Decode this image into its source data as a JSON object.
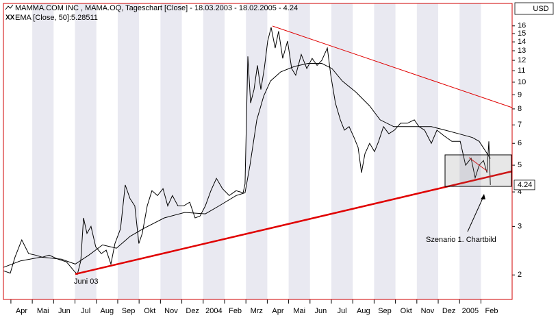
{
  "chart_data": {
    "type": "line",
    "title": "MAMMA.COM INC , MAMA.OQ, Tageschart [Close] - 18.03.2003 - 18.02.2005 - 4.24",
    "subtitle": "EMA [Close, 50]:5.28511",
    "currency": "USD",
    "last_price": 4.24,
    "annotations": [
      "Juni 03",
      "Szenario 1. Chartbild"
    ],
    "log_scale": true,
    "xlim": [
      -0.35,
      23.46
    ],
    "ylim": [
      1.63,
      19.3
    ],
    "xticks": [
      {
        "value": 0,
        "label": "Apr"
      },
      {
        "value": 1,
        "label": "Mai"
      },
      {
        "value": 2,
        "label": "Jun"
      },
      {
        "value": 3,
        "label": "Jul"
      },
      {
        "value": 4,
        "label": "Aug"
      },
      {
        "value": 5,
        "label": "Sep"
      },
      {
        "value": 6,
        "label": "Okt"
      },
      {
        "value": 7,
        "label": "Nov"
      },
      {
        "value": 8,
        "label": "Dez"
      },
      {
        "value": 9,
        "label": "2004"
      },
      {
        "value": 10,
        "label": "Feb"
      },
      {
        "value": 11,
        "label": "Mrz"
      },
      {
        "value": 12,
        "label": "Apr"
      },
      {
        "value": 13,
        "label": "Mai"
      },
      {
        "value": 14,
        "label": "Jun"
      },
      {
        "value": 15,
        "label": "Jul"
      },
      {
        "value": 16,
        "label": "Aug"
      },
      {
        "value": 17,
        "label": "Sep"
      },
      {
        "value": 18,
        "label": "Okt"
      },
      {
        "value": 19,
        "label": "Nov"
      },
      {
        "value": 20,
        "label": "Dez"
      },
      {
        "value": 21,
        "label": "2005"
      },
      {
        "value": 22,
        "label": "Feb"
      }
    ],
    "yticks": [
      2,
      3,
      4,
      5,
      6,
      7,
      8,
      9,
      10,
      11,
      12,
      13,
      14,
      15,
      16
    ],
    "series": [
      {
        "name": "Close",
        "color": "#000000",
        "x": [
          -0.35,
          -0.03,
          0.19,
          0.51,
          0.83,
          1.15,
          1.47,
          1.79,
          2.21,
          2.6,
          2.95,
          3.11,
          3.27,
          3.4,
          3.56,
          3.75,
          3.97,
          4.23,
          4.46,
          4.68,
          4.87,
          5.13,
          5.35,
          5.58,
          5.8,
          5.99,
          6.15,
          6.38,
          6.6,
          6.86,
          7.12,
          7.34,
          7.56,
          7.82,
          8.08,
          8.37,
          8.62,
          8.85,
          9.1,
          9.36,
          9.62,
          9.9,
          10.22,
          10.54,
          10.87,
          10.96,
          11.09,
          11.22,
          11.38,
          11.54,
          11.7,
          11.86,
          12.02,
          12.18,
          12.37,
          12.53,
          12.72,
          12.95,
          13.14,
          13.33,
          13.59,
          13.85,
          14.1,
          14.33,
          14.55,
          14.81,
          14.97,
          15.19,
          15.42,
          15.61,
          15.83,
          16.06,
          16.25,
          16.41,
          16.57,
          16.79,
          17.02,
          17.21,
          17.44,
          17.69,
          17.95,
          18.24,
          18.56,
          18.88,
          19.1,
          19.36,
          19.68,
          19.94,
          20.26,
          20.64,
          21.03,
          21.28,
          21.54,
          21.73,
          21.92,
          22.12,
          22.28,
          22.37,
          22.44
        ],
        "values": [
          2.07,
          2.03,
          2.32,
          2.68,
          2.39,
          2.36,
          2.32,
          2.36,
          2.28,
          2.23,
          2.07,
          2.01,
          2.25,
          3.22,
          2.83,
          3.0,
          2.53,
          2.39,
          2.46,
          2.19,
          2.6,
          2.94,
          4.24,
          3.78,
          3.56,
          2.6,
          2.83,
          3.56,
          4.04,
          3.88,
          4.11,
          3.56,
          3.88,
          3.56,
          3.56,
          3.67,
          3.22,
          3.27,
          3.56,
          4.04,
          4.48,
          4.11,
          3.88,
          4.04,
          3.97,
          4.28,
          12.4,
          8.4,
          9.4,
          11.5,
          9.4,
          11.2,
          14.1,
          15.8,
          13.3,
          15.3,
          12.2,
          14.1,
          11.2,
          10.6,
          12.6,
          11.2,
          12.2,
          11.5,
          12.0,
          13.3,
          10.6,
          8.4,
          7.3,
          6.7,
          6.9,
          6.3,
          5.8,
          4.7,
          5.5,
          6.0,
          5.6,
          6.1,
          6.9,
          6.5,
          6.7,
          7.1,
          7.1,
          7.3,
          6.9,
          6.7,
          6.0,
          6.7,
          6.4,
          6.1,
          6.1,
          5.0,
          5.3,
          4.5,
          5.0,
          5.2,
          4.7,
          6.1,
          4.24
        ]
      },
      {
        "name": "EMA [Close, 50]",
        "color": "#000000",
        "x": [
          -0.35,
          0.45,
          1.41,
          2.37,
          3.01,
          3.65,
          4.29,
          4.94,
          5.58,
          6.22,
          7.18,
          8.14,
          9.1,
          9.74,
          10.54,
          10.96,
          11.19,
          11.51,
          11.83,
          12.15,
          12.63,
          13.27,
          13.91,
          14.55,
          15.03,
          15.51,
          16.15,
          16.79,
          17.28,
          17.92,
          18.72,
          19.68,
          20.32,
          20.96,
          21.6,
          21.92,
          22.44
        ],
        "values": [
          2.13,
          2.25,
          2.32,
          2.28,
          2.19,
          2.36,
          2.57,
          2.5,
          2.76,
          2.95,
          3.22,
          3.37,
          3.33,
          3.56,
          3.88,
          3.97,
          5.0,
          7.3,
          8.9,
          10.1,
          10.9,
          11.4,
          11.7,
          11.7,
          11.2,
          10.1,
          9.2,
          8.2,
          7.3,
          6.9,
          6.9,
          6.9,
          6.7,
          6.5,
          6.3,
          6.1,
          5.28511
        ]
      }
    ]
  }
}
